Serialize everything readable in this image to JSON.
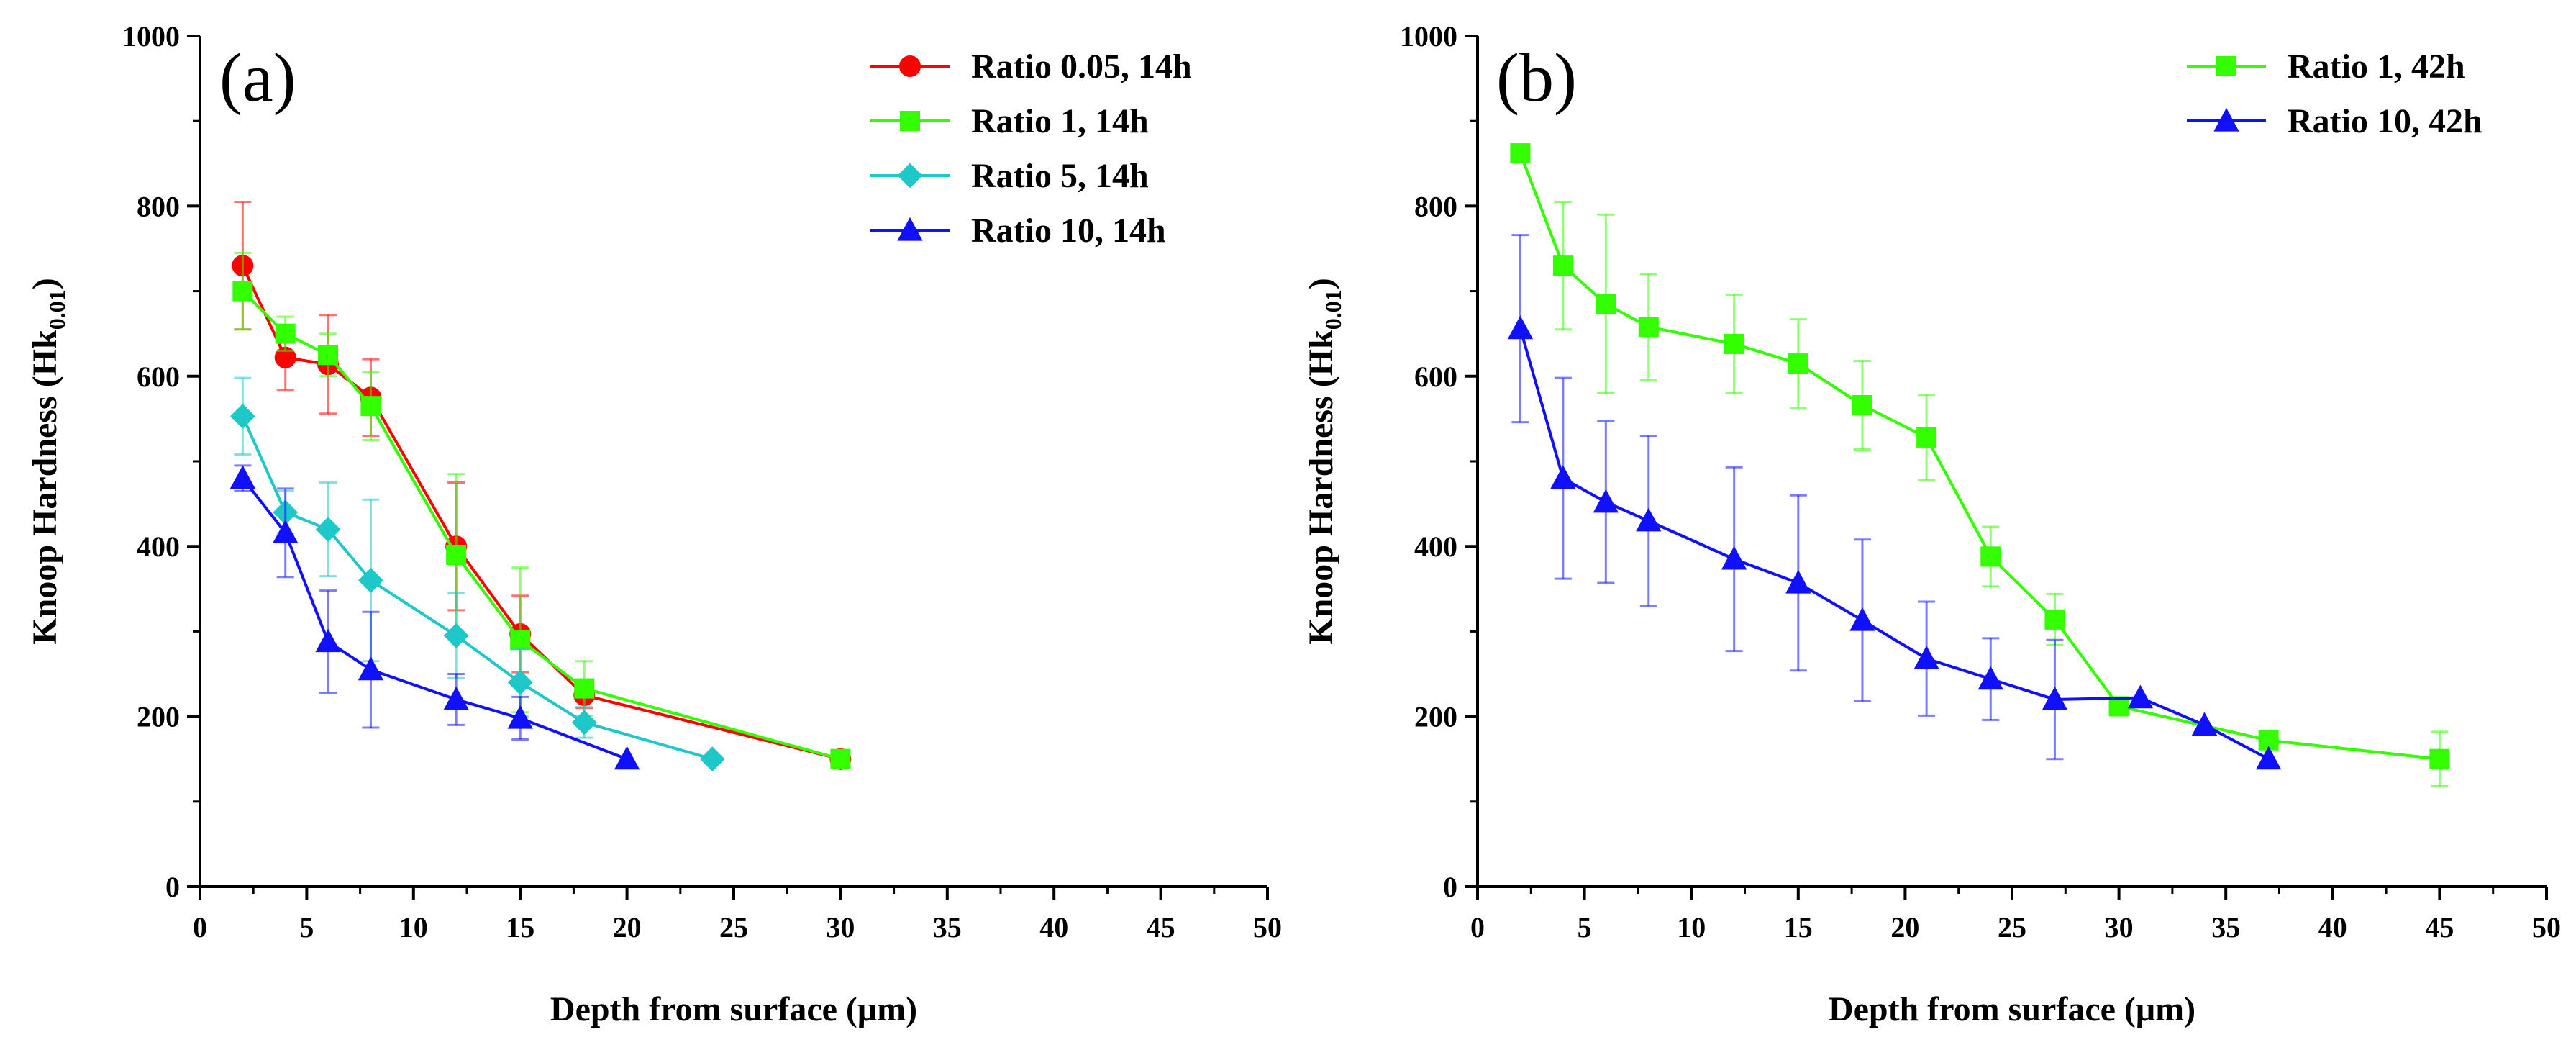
{
  "chart_data": [
    {
      "type": "line",
      "panel_label": "(a)",
      "xlabel": "Depth from surface (μm)",
      "ylabel": "Knoop Hardness (Hk",
      "ylabel_sub": "0.01",
      "ylabel_tail": ")",
      "xlim": [
        0,
        50
      ],
      "ylim": [
        0,
        1000
      ],
      "xticks": [
        "0",
        "5",
        "10",
        "15",
        "20",
        "25",
        "30",
        "35",
        "40",
        "45",
        "50"
      ],
      "yticks": [
        "0",
        "200",
        "400",
        "600",
        "800",
        "1000"
      ],
      "legend_position": "top-right",
      "series": [
        {
          "name": "Ratio 0.05, 14h",
          "color": "#ff0000",
          "marker": "circle",
          "x": [
            2,
            4,
            6,
            8,
            12,
            15,
            18,
            30
          ],
          "y": [
            730,
            622,
            614,
            575,
            400,
            297,
            225,
            150
          ],
          "err": [
            75,
            38,
            58,
            45,
            75,
            45,
            15,
            0
          ]
        },
        {
          "name": "Ratio 1, 14h",
          "color": "#33ff00",
          "marker": "square",
          "x": [
            2,
            4,
            6,
            8,
            12,
            15,
            18,
            30
          ],
          "y": [
            700,
            650,
            625,
            565,
            390,
            290,
            233,
            150
          ],
          "err": [
            45,
            20,
            25,
            40,
            95,
            85,
            32,
            0
          ]
        },
        {
          "name": "Ratio 5, 14h",
          "color": "#1fc8c8",
          "marker": "diamond",
          "x": [
            2,
            4,
            6,
            8,
            12,
            15,
            18,
            24
          ],
          "y": [
            553,
            440,
            420,
            360,
            295,
            240,
            193,
            150
          ],
          "err": [
            45,
            25,
            55,
            95,
            50,
            40,
            18,
            0
          ]
        },
        {
          "name": "Ratio 10, 14h",
          "color": "#1010ff",
          "marker": "triangle",
          "x": [
            2,
            4,
            6,
            8,
            12,
            15,
            20
          ],
          "y": [
            480,
            416,
            288,
            255,
            220,
            198,
            150
          ],
          "err": [
            15,
            52,
            60,
            68,
            30,
            25,
            0
          ]
        }
      ]
    },
    {
      "type": "line",
      "panel_label": "(b)",
      "xlabel": "Depth from surface (μm)",
      "ylabel": "Knoop Hardness (Hk",
      "ylabel_sub": "0.01",
      "ylabel_tail": ")",
      "xlim": [
        0,
        50
      ],
      "ylim": [
        0,
        1000
      ],
      "xticks": [
        "0",
        "5",
        "10",
        "15",
        "20",
        "25",
        "30",
        "35",
        "40",
        "45",
        "50"
      ],
      "yticks": [
        "0",
        "200",
        "400",
        "600",
        "800",
        "1000"
      ],
      "legend_position": "top-right",
      "series": [
        {
          "name": "Ratio 1, 42h",
          "color": "#33ff00",
          "marker": "square",
          "x": [
            2,
            4,
            6,
            8,
            12,
            15,
            18,
            21,
            24,
            27,
            30,
            37,
            45
          ],
          "y": [
            862,
            730,
            685,
            658,
            638,
            615,
            566,
            528,
            388,
            314,
            212,
            172,
            150
          ],
          "err": [
            0,
            75,
            105,
            62,
            58,
            52,
            52,
            50,
            35,
            30,
            0,
            0,
            32
          ]
        },
        {
          "name": "Ratio 10, 42h",
          "color": "#1010ff",
          "marker": "triangle",
          "x": [
            2,
            4,
            6,
            8,
            12,
            15,
            18,
            21,
            24,
            27,
            31,
            34,
            37
          ],
          "y": [
            656,
            480,
            452,
            430,
            385,
            357,
            313,
            268,
            244,
            220,
            222,
            190,
            150
          ],
          "err": [
            110,
            118,
            95,
            100,
            108,
            103,
            95,
            67,
            48,
            70,
            0,
            0,
            0
          ]
        }
      ]
    }
  ]
}
